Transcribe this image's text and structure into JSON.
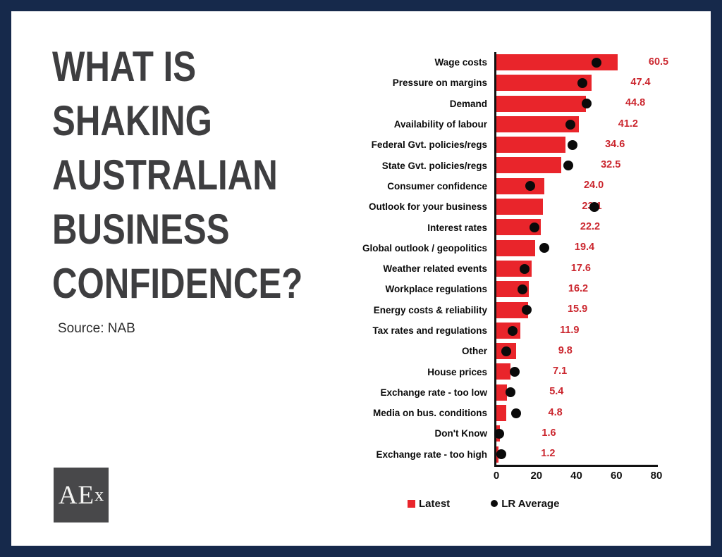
{
  "frame": {
    "border_color": "#16294b",
    "background": "#ffffff"
  },
  "title": {
    "text": "WHAT IS\nSHAKING\nAUSTRALIAN\nBUSINESS\nCONFIDENCE?",
    "color": "#3e3e40"
  },
  "source": {
    "text": "Source: NAB"
  },
  "logo": {
    "text_main": "AE",
    "text_sub": "x",
    "background": "#48484a"
  },
  "chart_data": {
    "type": "bar",
    "orientation": "horizontal",
    "title": "",
    "xlabel": "",
    "ylabel": "",
    "xlim": [
      0,
      80
    ],
    "x_ticks": [
      0,
      20,
      40,
      60,
      80
    ],
    "grid": false,
    "legend_position": "bottom",
    "categories": [
      "Wage costs",
      "Pressure on margins",
      "Demand",
      "Availability of labour",
      "Federal Gvt. policies/regs",
      "State Gvt. policies/regs",
      "Consumer confidence",
      "Outlook for your business",
      "Interest rates",
      "Global outlook / geopolitics",
      "Weather related events",
      "Workplace regulations",
      "Energy costs & reliability",
      "Tax rates and regulations",
      "Other",
      "House prices",
      "Exchange rate - too low",
      "Media on bus. conditions",
      "Don't Know",
      "Exchange rate - too high"
    ],
    "series": [
      {
        "name": "Latest",
        "marker": "square",
        "color": "#e9252b",
        "values": [
          60.5,
          47.4,
          44.8,
          41.2,
          34.6,
          32.5,
          24.0,
          23.1,
          22.2,
          19.4,
          17.6,
          16.2,
          15.9,
          11.9,
          9.8,
          7.1,
          5.4,
          4.8,
          1.6,
          1.2
        ]
      },
      {
        "name": "LR Average",
        "marker": "dot",
        "color": "#0a0a0a",
        "values": [
          50,
          43,
          45,
          37,
          38,
          36,
          17,
          49,
          19,
          24,
          14,
          13,
          15,
          8,
          5,
          9,
          7,
          10,
          1.5,
          2.5
        ]
      }
    ],
    "value_labels": [
      "60.5",
      "47.4",
      "44.8",
      "41.2",
      "34.6",
      "32.5",
      "24.0",
      "23.1",
      "22.2",
      "19.4",
      "17.6",
      "16.2",
      "15.9",
      "11.9",
      "9.8",
      "7.1",
      "5.4",
      "4.8",
      "1.6",
      "1.2"
    ],
    "legend": [
      {
        "label": "Latest",
        "marker": "square",
        "color": "#e9252b"
      },
      {
        "label": "LR Average",
        "marker": "dot",
        "color": "#0a0a0a"
      }
    ]
  }
}
